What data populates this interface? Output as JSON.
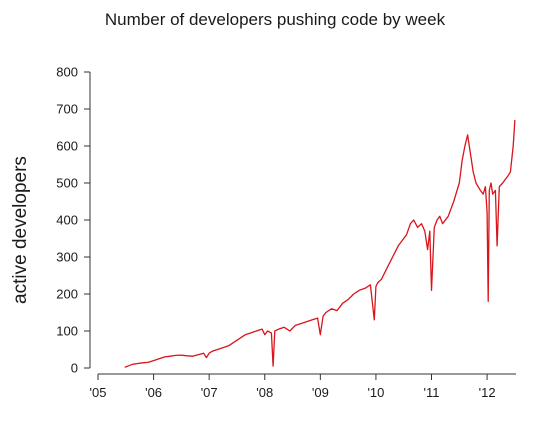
{
  "chart_data": {
    "type": "line",
    "title": "Number of developers pushing code by week",
    "xlabel": "",
    "ylabel": "active developers",
    "xlim": [
      2005.0,
      2012.52
    ],
    "ylim": [
      0,
      800
    ],
    "yticks": [
      0,
      100,
      200,
      300,
      400,
      500,
      600,
      700,
      800
    ],
    "xticks": [
      {
        "value": 2005,
        "label": "'05"
      },
      {
        "value": 2006,
        "label": "'06"
      },
      {
        "value": 2007,
        "label": "'07"
      },
      {
        "value": 2008,
        "label": "'08"
      },
      {
        "value": 2009,
        "label": "'09"
      },
      {
        "value": 2010,
        "label": "'10"
      },
      {
        "value": 2011,
        "label": "'11"
      },
      {
        "value": 2012,
        "label": "'12"
      }
    ],
    "grid": false,
    "color": "#d9141b",
    "series": [
      {
        "x": [
          2005.48,
          2005.55,
          2005.62,
          2005.7,
          2005.8,
          2005.9,
          2006.0,
          2006.1,
          2006.2,
          2006.3,
          2006.4,
          2006.5,
          2006.6,
          2006.7,
          2006.8,
          2006.9,
          2006.95,
          2007.0,
          2007.05,
          2007.15,
          2007.25,
          2007.35,
          2007.45,
          2007.55,
          2007.65,
          2007.75,
          2007.85,
          2007.95,
          2008.0,
          2008.05,
          2008.12,
          2008.15,
          2008.18,
          2008.25,
          2008.35,
          2008.45,
          2008.55,
          2008.65,
          2008.75,
          2008.85,
          2008.95,
          2009.0,
          2009.05,
          2009.1,
          2009.2,
          2009.3,
          2009.4,
          2009.5,
          2009.6,
          2009.7,
          2009.8,
          2009.9,
          2009.97,
          2010.0,
          2010.03,
          2010.1,
          2010.2,
          2010.3,
          2010.4,
          2010.5,
          2010.55,
          2010.62,
          2010.68,
          2010.75,
          2010.82,
          2010.88,
          2010.93,
          2010.97,
          2011.0,
          2011.05,
          2011.1,
          2011.15,
          2011.2,
          2011.3,
          2011.4,
          2011.5,
          2011.55,
          2011.6,
          2011.65,
          2011.7,
          2011.75,
          2011.8,
          2011.88,
          2011.93,
          2011.97,
          2012.0,
          2012.02,
          2012.04,
          2012.07,
          2012.1,
          2012.15,
          2012.18,
          2012.22,
          2012.28,
          2012.33,
          2012.38,
          2012.42,
          2012.47,
          2012.5
        ],
        "y": [
          2,
          6,
          10,
          12,
          14,
          15,
          20,
          25,
          30,
          32,
          34,
          35,
          33,
          32,
          36,
          40,
          28,
          40,
          45,
          50,
          55,
          60,
          70,
          80,
          90,
          95,
          100,
          105,
          90,
          100,
          95,
          5,
          100,
          105,
          110,
          100,
          115,
          120,
          125,
          130,
          135,
          90,
          140,
          150,
          160,
          155,
          175,
          185,
          200,
          210,
          215,
          225,
          130,
          220,
          230,
          240,
          270,
          300,
          330,
          350,
          360,
          390,
          400,
          380,
          390,
          370,
          320,
          370,
          210,
          380,
          400,
          410,
          390,
          410,
          450,
          500,
          560,
          600,
          630,
          580,
          530,
          500,
          480,
          470,
          490,
          420,
          180,
          480,
          500,
          470,
          480,
          330,
          490,
          500,
          510,
          520,
          530,
          600,
          670
        ]
      }
    ]
  }
}
